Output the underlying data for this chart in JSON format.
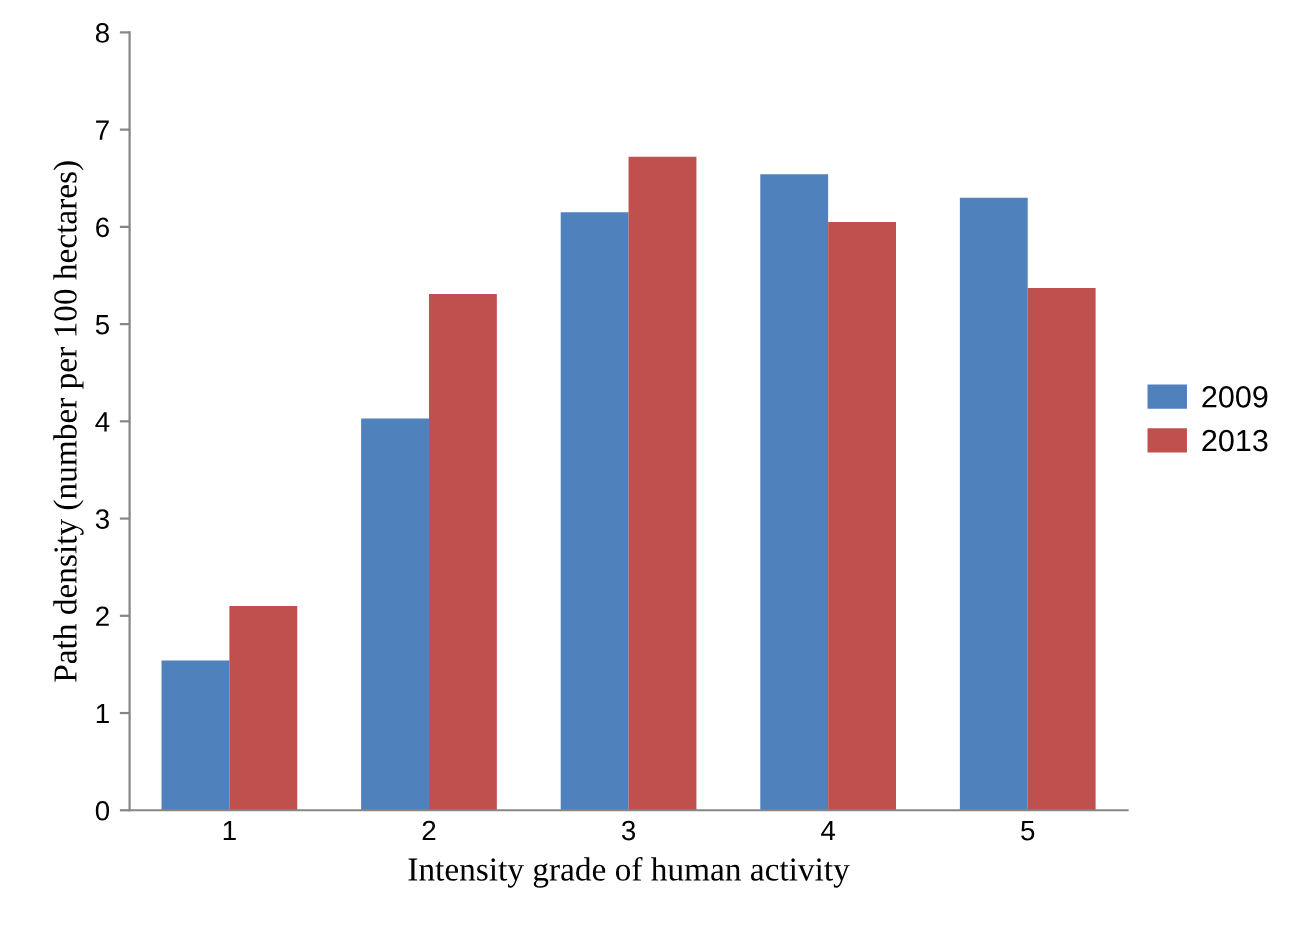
{
  "chart_data": {
    "type": "bar",
    "xlabel": "Intensity grade of human activity",
    "ylabel": "Path density (number per 100 hectares)",
    "categories": [
      "1",
      "2",
      "3",
      "4",
      "5"
    ],
    "series": [
      {
        "name": "2009",
        "color": "#4f81bd",
        "values": [
          1.54,
          4.03,
          6.15,
          6.54,
          6.3
        ]
      },
      {
        "name": "2013",
        "color": "#c0504d",
        "values": [
          2.1,
          5.31,
          6.72,
          6.05,
          5.37
        ]
      }
    ],
    "ylim": [
      0,
      8
    ],
    "yticks": [
      0,
      1,
      2,
      3,
      4,
      5,
      6,
      7,
      8
    ],
    "grid": false,
    "legend": "right"
  }
}
